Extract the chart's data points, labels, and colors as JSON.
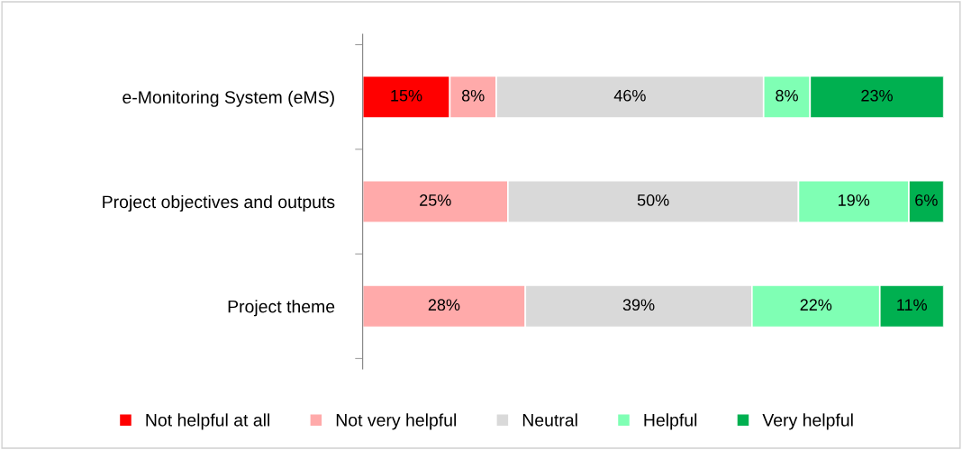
{
  "chart_data": {
    "type": "bar",
    "orientation": "horizontal",
    "stacked": true,
    "categories": [
      "e-Monitoring System (eMS)",
      "Project objectives and outputs",
      "Project theme"
    ],
    "xlim": [
      0,
      100
    ],
    "tick_labels": "y",
    "grid": false,
    "legend": "bottom",
    "series": [
      {
        "name": "Not helpful at all",
        "color": "#ff0000",
        "values": [
          15,
          null,
          null
        ],
        "value_labels": [
          "15%",
          null,
          null
        ]
      },
      {
        "name": "Not very helpful",
        "color": "#ffaaaa",
        "values": [
          8,
          25,
          28
        ],
        "value_labels": [
          "8%",
          "25%",
          "28%"
        ]
      },
      {
        "name": "Neutral",
        "color": "#d9d9d9",
        "values": [
          46,
          50,
          39
        ],
        "value_labels": [
          "46%",
          "50%",
          "39%"
        ]
      },
      {
        "name": "Helpful",
        "color": "#7fffb4",
        "values": [
          8,
          19,
          22
        ],
        "value_labels": [
          "8%",
          "19%",
          "22%"
        ]
      },
      {
        "name": "Very helpful",
        "color": "#00b050",
        "values": [
          23,
          6,
          11
        ],
        "value_labels": [
          "23%",
          "6%",
          "11%"
        ]
      }
    ]
  }
}
